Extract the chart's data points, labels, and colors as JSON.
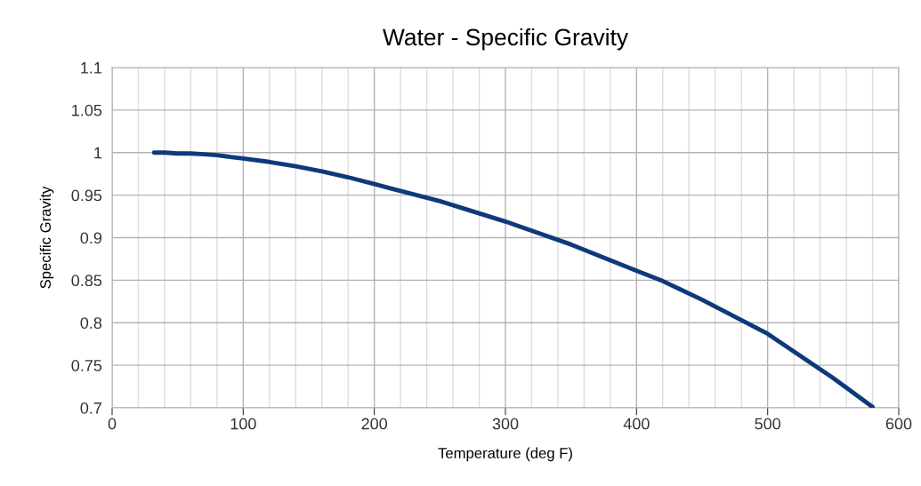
{
  "chart_data": {
    "type": "line",
    "title": "Water - Specific Gravity",
    "xlabel": "Temperature (deg F)",
    "ylabel": "Specific Gravity",
    "x": [
      32,
      40,
      50,
      60,
      70,
      80,
      90,
      100,
      120,
      140,
      160,
      180,
      200,
      212,
      250,
      300,
      350,
      400,
      420,
      450,
      500,
      550,
      580
    ],
    "series": [
      {
        "color": "#0d3a7a",
        "values": [
          1.0,
          1.0,
          0.999,
          0.999,
          0.998,
          0.997,
          0.995,
          0.993,
          0.989,
          0.984,
          0.978,
          0.971,
          0.963,
          0.958,
          0.943,
          0.919,
          0.892,
          0.861,
          0.849,
          0.827,
          0.787,
          0.735,
          0.701
        ]
      }
    ],
    "xlim": [
      0,
      600
    ],
    "xticks": [
      0,
      {
        "value": 20,
        "label": null
      },
      {
        "value": 40,
        "label": null
      },
      {
        "value": 60,
        "label": null
      },
      {
        "value": 80,
        "label": null
      },
      100,
      {
        "value": 120,
        "label": null
      },
      {
        "value": 140,
        "label": null
      },
      {
        "value": 160,
        "label": null
      },
      {
        "value": 180,
        "label": null
      },
      200,
      {
        "value": 220,
        "label": null
      },
      {
        "value": 240,
        "label": null
      },
      {
        "value": 260,
        "label": null
      },
      {
        "value": 280,
        "label": null
      },
      300,
      {
        "value": 320,
        "label": null
      },
      {
        "value": 340,
        "label": null
      },
      {
        "value": 360,
        "label": null
      },
      {
        "value": 380,
        "label": null
      },
      400,
      {
        "value": 420,
        "label": null
      },
      {
        "value": 440,
        "label": null
      },
      {
        "value": 460,
        "label": null
      },
      {
        "value": 480,
        "label": null
      },
      500,
      {
        "value": 520,
        "label": null
      },
      {
        "value": 540,
        "label": null
      },
      {
        "value": 560,
        "label": null
      },
      {
        "value": 580,
        "label": null
      },
      600
    ],
    "ylim": [
      0.7,
      1.1
    ],
    "yticks": [
      {
        "value": 0.7,
        "label": "0.7"
      },
      {
        "value": 0.75,
        "label": "0.75"
      },
      {
        "value": 0.8,
        "label": "0.8"
      },
      {
        "value": 0.85,
        "label": "0.85"
      },
      {
        "value": 0.9,
        "label": "0.9"
      },
      {
        "value": 0.95,
        "label": "0.95"
      },
      {
        "value": 1.0,
        "label": "1"
      },
      {
        "value": 1.05,
        "label": "1.05"
      },
      {
        "value": 1.1,
        "label": "1.1"
      }
    ],
    "grid": true,
    "marker": "none",
    "line_style": "solid"
  }
}
